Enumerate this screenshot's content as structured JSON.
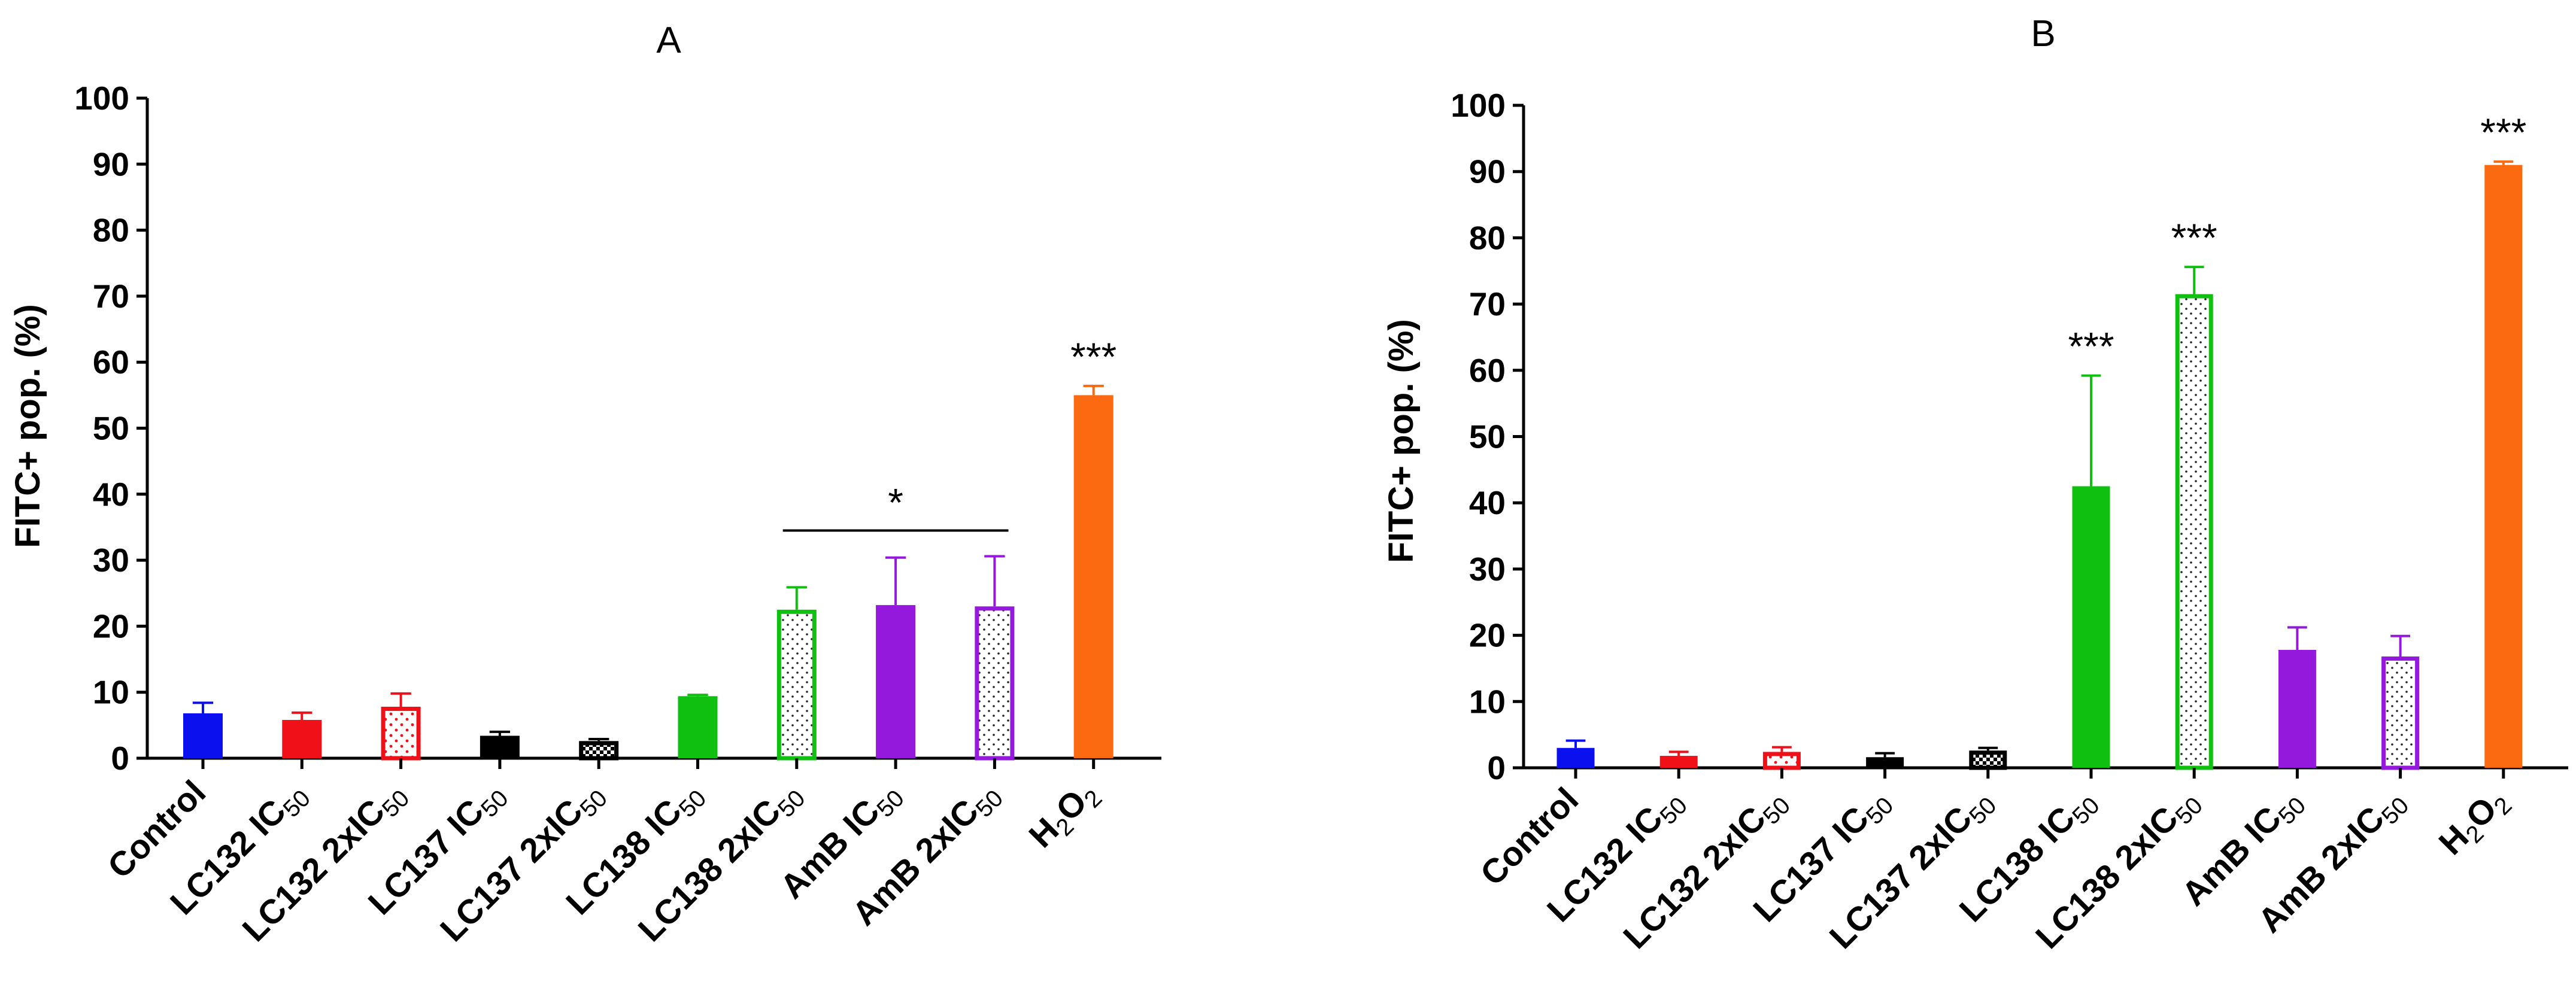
{
  "chart_data": [
    {
      "type": "bar",
      "title": "A",
      "xlabel": "",
      "ylabel": "FITC+ pop. (%)",
      "ylim": [
        0,
        100
      ],
      "yticks": [
        "0",
        "10",
        "20",
        "30",
        "40",
        "50",
        "60",
        "70",
        "80",
        "90",
        "100"
      ],
      "categories": [
        {
          "prefix": "Control",
          "sub": ""
        },
        {
          "prefix": "LC132 IC",
          "sub": "50"
        },
        {
          "prefix": "LC132 2xIC",
          "sub": "50"
        },
        {
          "prefix": "LC137 IC",
          "sub": "50"
        },
        {
          "prefix": "LC137 2xIC",
          "sub": "50"
        },
        {
          "prefix": "LC138 IC",
          "sub": "50"
        },
        {
          "prefix": "LC138 2xIC",
          "sub": "50"
        },
        {
          "prefix": "AmB IC",
          "sub": "50"
        },
        {
          "prefix": "AmB 2xIC",
          "sub": "50"
        },
        {
          "prefix": "H",
          "sub": "2",
          "mid": "O",
          "sub2": "2"
        }
      ],
      "values": [
        6.8,
        5.8,
        7.8,
        3.4,
        2.6,
        9.4,
        22.5,
        23.2,
        23.0,
        55.0
      ],
      "errors": [
        1.6,
        1.1,
        2.0,
        0.6,
        0.3,
        0.2,
        3.4,
        7.2,
        7.6,
        1.4
      ],
      "colors": [
        "#0a10ee",
        "#ef1018",
        "#ef1018",
        "#000000",
        "#000000",
        "#10c010",
        "#10c010",
        "#9518dd",
        "#9518dd",
        "#fb6a10"
      ],
      "fills": [
        "solid",
        "solid",
        "hatch",
        "solid",
        "checker",
        "solid",
        "dots",
        "solid",
        "dots",
        "solid"
      ],
      "significance": [
        {
          "index": 9,
          "label": "***"
        }
      ],
      "brackets": [
        {
          "from": 6,
          "to": 8,
          "y": 34.5,
          "label": "*"
        }
      ]
    },
    {
      "type": "bar",
      "title": "B",
      "xlabel": "",
      "ylabel": "FITC+ pop. (%)",
      "ylim": [
        0,
        100
      ],
      "yticks": [
        "0",
        "10",
        "20",
        "30",
        "40",
        "50",
        "60",
        "70",
        "80",
        "90",
        "100"
      ],
      "categories": [
        {
          "prefix": "Control",
          "sub": ""
        },
        {
          "prefix": "LC132 IC",
          "sub": "50"
        },
        {
          "prefix": "LC132 2xIC",
          "sub": "50"
        },
        {
          "prefix": "LC137 IC",
          "sub": "50"
        },
        {
          "prefix": "LC137 2xIC",
          "sub": "50"
        },
        {
          "prefix": "LC138 IC",
          "sub": "50"
        },
        {
          "prefix": "LC138 2xIC",
          "sub": "50"
        },
        {
          "prefix": "AmB IC",
          "sub": "50"
        },
        {
          "prefix": "AmB 2xIC",
          "sub": "50"
        },
        {
          "prefix": "H",
          "sub": "2",
          "mid": "O",
          "sub2": "2"
        }
      ],
      "values": [
        3.0,
        1.8,
        2.4,
        1.6,
        2.6,
        42.5,
        71.5,
        17.8,
        16.8,
        91.0
      ],
      "errors": [
        1.1,
        0.6,
        0.7,
        0.6,
        0.4,
        16.7,
        4.1,
        3.4,
        3.1,
        0.5
      ],
      "colors": [
        "#0a10ee",
        "#ef1018",
        "#ef1018",
        "#000000",
        "#000000",
        "#10c010",
        "#10c010",
        "#9518dd",
        "#9518dd",
        "#fb6a10"
      ],
      "fills": [
        "solid",
        "solid",
        "hatch",
        "solid",
        "checker",
        "solid",
        "dots",
        "solid",
        "dots",
        "solid"
      ],
      "significance": [
        {
          "index": 5,
          "label": "***"
        },
        {
          "index": 6,
          "label": "***"
        },
        {
          "index": 9,
          "label": "***"
        }
      ],
      "brackets": []
    }
  ]
}
